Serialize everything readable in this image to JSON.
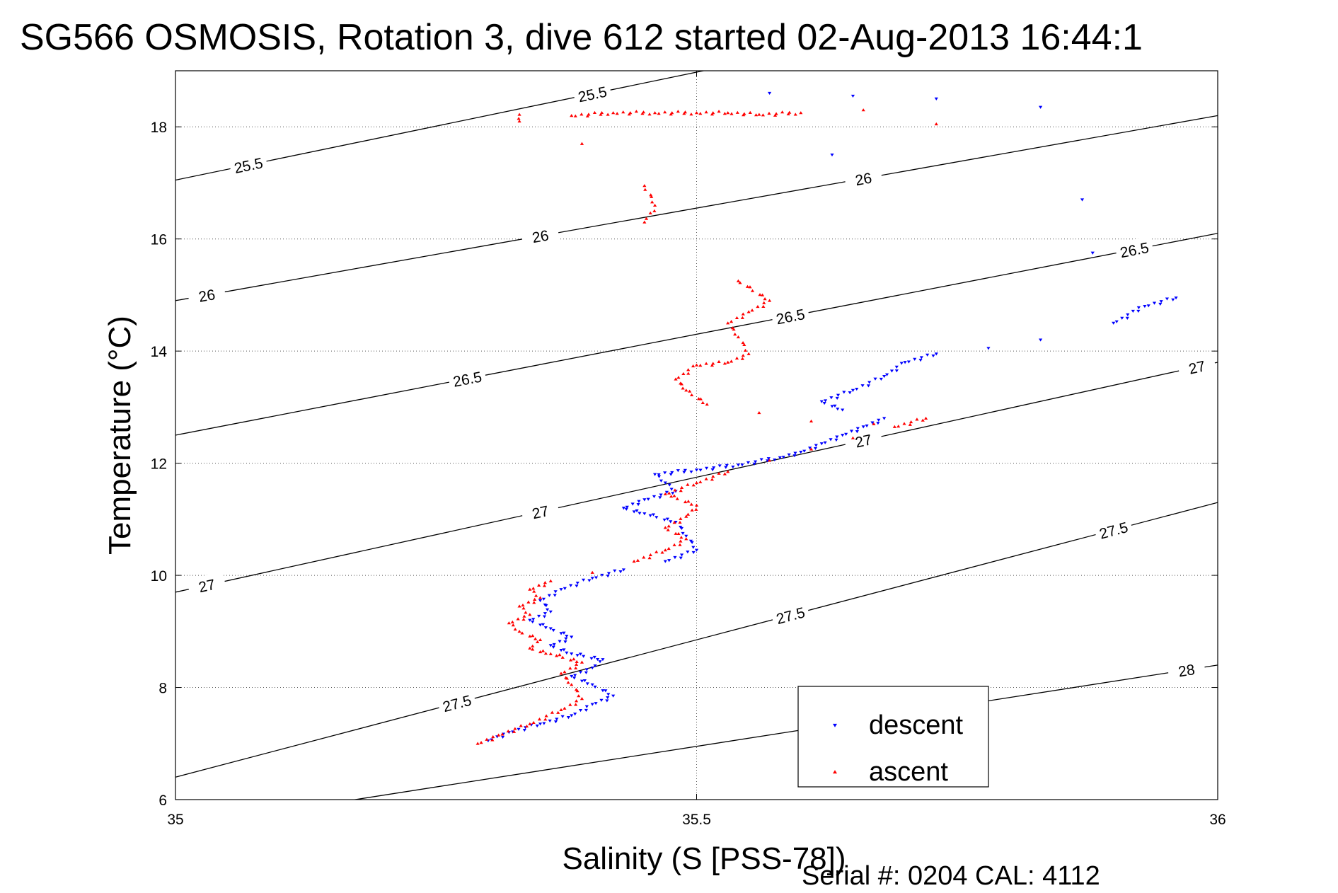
{
  "chart_data": {
    "type": "scatter",
    "title": "SG566 OSMOSIS, Rotation 3, dive 612 started 02-Aug-2013 16:44:1",
    "xlabel": "Salinity (S [PSS-78])",
    "ylabel": "Temperature (°C)",
    "xlim": [
      35,
      36
    ],
    "ylim": [
      6,
      19
    ],
    "xticks": [
      35,
      35.5,
      36
    ],
    "xtick_labels": [
      "35",
      "35.5",
      "36"
    ],
    "yticks": [
      6,
      8,
      10,
      12,
      14,
      16,
      18
    ],
    "ytick_labels": [
      "6",
      "8",
      "10",
      "12",
      "14",
      "16",
      "18"
    ],
    "grid": true,
    "legend_position": "bottom-right",
    "footer": "Serial #: 0204  CAL: 4112",
    "density_contours": [
      {
        "level": "25.5",
        "y_at_x_min": 17.05,
        "y_at_x_max": 20.9,
        "label_x": [
          35.07,
          35.4
        ]
      },
      {
        "level": "26",
        "y_at_x_min": 14.9,
        "y_at_x_max": 18.2,
        "label_x": [
          35.03,
          35.35,
          35.66
        ]
      },
      {
        "level": "26.5",
        "y_at_x_min": 12.5,
        "y_at_x_max": 16.1,
        "label_x": [
          35.28,
          35.59,
          35.92
        ]
      },
      {
        "level": "27",
        "y_at_x_min": 9.7,
        "y_at_x_max": 13.8,
        "label_x": [
          35.03,
          35.35,
          35.66,
          35.98
        ]
      },
      {
        "level": "27.5",
        "y_at_x_min": 6.4,
        "y_at_x_max": 11.3,
        "label_x": [
          35.27,
          35.59,
          35.9
        ]
      },
      {
        "level": "28",
        "y_at_x_min": 5.5,
        "y_at_x_max": 8.4,
        "label_x": [
          35.97
        ]
      }
    ],
    "series": [
      {
        "name": "descent",
        "color": "#0000ff",
        "marker": "triangle-down",
        "points": [
          [
            35.3,
            7.05
          ],
          [
            35.32,
            7.2
          ],
          [
            35.35,
            7.35
          ],
          [
            35.38,
            7.5
          ],
          [
            35.4,
            7.7
          ],
          [
            35.42,
            7.85
          ],
          [
            35.4,
            8.05
          ],
          [
            35.38,
            8.2
          ],
          [
            35.4,
            8.35
          ],
          [
            35.41,
            8.5
          ],
          [
            35.38,
            8.6
          ],
          [
            35.36,
            8.75
          ],
          [
            35.38,
            8.9
          ],
          [
            35.36,
            9.05
          ],
          [
            35.34,
            9.2
          ],
          [
            35.36,
            9.35
          ],
          [
            35.35,
            9.55
          ],
          [
            35.37,
            9.75
          ],
          [
            35.4,
            9.95
          ],
          [
            35.43,
            10.1
          ],
          [
            35.47,
            10.25
          ],
          [
            35.5,
            10.45
          ],
          [
            35.49,
            10.7
          ],
          [
            35.48,
            10.95
          ],
          [
            35.45,
            11.1
          ],
          [
            35.43,
            11.2
          ],
          [
            35.45,
            11.35
          ],
          [
            35.48,
            11.5
          ],
          [
            35.47,
            11.65
          ],
          [
            35.46,
            11.8
          ],
          [
            35.5,
            11.88
          ],
          [
            35.54,
            11.97
          ],
          [
            35.58,
            12.1
          ],
          [
            35.6,
            12.2
          ],
          [
            35.62,
            12.35
          ],
          [
            35.64,
            12.5
          ],
          [
            35.66,
            12.65
          ],
          [
            35.68,
            12.8
          ],
          [
            35.64,
            12.95
          ],
          [
            35.62,
            13.1
          ],
          [
            35.65,
            13.3
          ],
          [
            35.68,
            13.55
          ],
          [
            35.7,
            13.8
          ],
          [
            35.73,
            13.95
          ],
          [
            35.78,
            14.05
          ],
          [
            35.83,
            14.2
          ],
          [
            35.9,
            14.5
          ],
          [
            35.93,
            14.8
          ],
          [
            35.96,
            14.95
          ],
          [
            35.88,
            15.75
          ],
          [
            35.87,
            16.7
          ],
          [
            35.63,
            17.5
          ],
          [
            35.73,
            18.5
          ],
          [
            35.65,
            18.55
          ],
          [
            35.57,
            18.6
          ],
          [
            35.83,
            18.35
          ]
        ]
      },
      {
        "name": "ascent",
        "color": "#ff0000",
        "marker": "triangle-up",
        "points": [
          [
            35.29,
            7.0
          ],
          [
            35.31,
            7.15
          ],
          [
            35.34,
            7.35
          ],
          [
            35.37,
            7.6
          ],
          [
            35.39,
            7.8
          ],
          [
            35.38,
            8.05
          ],
          [
            35.37,
            8.25
          ],
          [
            35.39,
            8.45
          ],
          [
            35.36,
            8.6
          ],
          [
            35.34,
            8.7
          ],
          [
            35.35,
            8.85
          ],
          [
            35.33,
            9.0
          ],
          [
            35.32,
            9.15
          ],
          [
            35.34,
            9.3
          ],
          [
            35.33,
            9.45
          ],
          [
            35.35,
            9.6
          ],
          [
            35.34,
            9.75
          ],
          [
            35.36,
            9.9
          ],
          [
            35.4,
            10.05
          ],
          [
            35.44,
            10.25
          ],
          [
            35.47,
            10.45
          ],
          [
            35.49,
            10.65
          ],
          [
            35.47,
            10.85
          ],
          [
            35.49,
            11.05
          ],
          [
            35.5,
            11.25
          ],
          [
            35.47,
            11.45
          ],
          [
            35.5,
            11.65
          ],
          [
            35.53,
            11.85
          ],
          [
            35.57,
            12.05
          ],
          [
            35.61,
            12.25
          ],
          [
            35.65,
            12.45
          ],
          [
            35.69,
            12.65
          ],
          [
            35.72,
            12.8
          ],
          [
            35.67,
            12.7
          ],
          [
            35.61,
            12.75
          ],
          [
            35.56,
            12.9
          ],
          [
            35.51,
            13.05
          ],
          [
            35.49,
            13.3
          ],
          [
            35.48,
            13.5
          ],
          [
            35.5,
            13.75
          ],
          [
            35.53,
            13.8
          ],
          [
            35.55,
            13.95
          ],
          [
            35.54,
            14.25
          ],
          [
            35.53,
            14.5
          ],
          [
            35.55,
            14.7
          ],
          [
            35.57,
            14.9
          ],
          [
            35.54,
            15.25
          ],
          [
            35.45,
            16.3
          ],
          [
            35.46,
            16.6
          ],
          [
            35.45,
            16.95
          ],
          [
            35.39,
            17.7
          ],
          [
            35.33,
            18.1
          ],
          [
            35.33,
            18.22
          ],
          [
            35.38,
            18.2
          ],
          [
            35.42,
            18.25
          ],
          [
            35.46,
            18.25
          ],
          [
            35.5,
            18.25
          ],
          [
            35.53,
            18.25
          ],
          [
            35.56,
            18.22
          ],
          [
            35.6,
            18.25
          ],
          [
            35.66,
            18.3
          ],
          [
            35.73,
            18.05
          ]
        ]
      }
    ]
  }
}
